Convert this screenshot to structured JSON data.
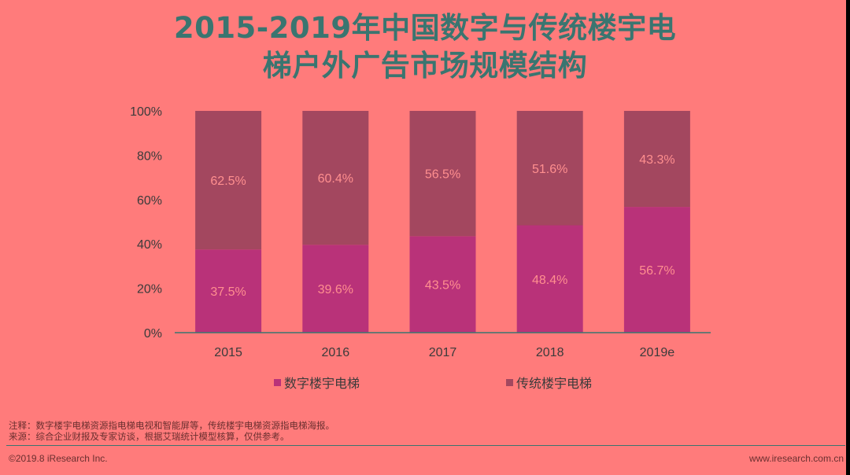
{
  "title_line1": "2015-2019年中国数字与传统楼宇电",
  "title_line2": "梯户外广告市场规模结构",
  "chart_data": {
    "type": "bar",
    "stacked": true,
    "categories": [
      "2015",
      "2016",
      "2017",
      "2018",
      "2019e"
    ],
    "series": [
      {
        "name": "数字楼宇电梯",
        "values": [
          37.5,
          39.6,
          43.5,
          48.4,
          56.7
        ],
        "labels": [
          "37.5%",
          "39.6%",
          "43.5%",
          "48.4%",
          "56.7%"
        ],
        "color": "#b93279"
      },
      {
        "name": "传统楼宇电梯",
        "values": [
          62.5,
          60.4,
          56.5,
          51.6,
          43.3
        ],
        "labels": [
          "62.5%",
          "60.4%",
          "56.5%",
          "51.6%",
          "43.3%"
        ],
        "color": "#a3475f"
      }
    ],
    "ylim": [
      0,
      100
    ],
    "yticks": [
      "0%",
      "20%",
      "40%",
      "60%",
      "80%",
      "100%"
    ],
    "legend_position": "bottom",
    "grid": false
  },
  "notes": {
    "note": "注释：数字楼宇电梯资源指电梯电视和智能屏等，传统楼宇电梯资源指电梯海报。",
    "source": "来源：综合企业财报及专家访谈，根据艾瑞统计模型核算，仅供参考。"
  },
  "footer": {
    "copyright": "©2019.8 iResearch Inc.",
    "website": "www.iresearch.com.cn"
  },
  "colors": {
    "background": "#ff7b7b",
    "title": "#3a7570",
    "axis": "#3a7570"
  }
}
